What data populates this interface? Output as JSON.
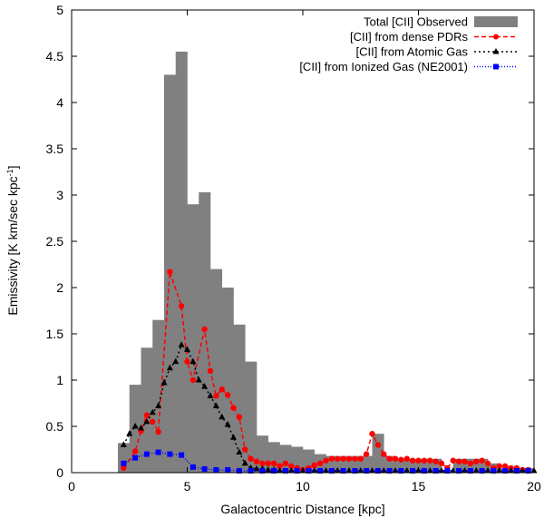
{
  "chart_data": {
    "type": "bar+line",
    "xlabel": "Galactocentric Distance [kpc]",
    "ylabel": "Emissivity [K km/sec kpc",
    "ylabel_sup": "-1",
    "ylabel_close": "]",
    "xlim": [
      0,
      20
    ],
    "ylim": [
      0,
      5
    ],
    "xticks": [
      0,
      5,
      10,
      15,
      20
    ],
    "xtick_labels": [
      "0",
      "5",
      "10",
      "15",
      "20"
    ],
    "yticks": [
      0,
      0.5,
      1,
      1.5,
      2,
      2.5,
      3,
      3.5,
      4,
      4.5,
      5
    ],
    "ytick_labels": [
      "0",
      "0.5",
      "1",
      "1.5",
      "2",
      "2.5",
      "3",
      "3.5",
      "4",
      "4.5",
      "5"
    ],
    "legend_position": "top-right",
    "histogram": {
      "name": "Total [CII] Observed",
      "color": "#808080",
      "bin_edges": [
        2,
        2.5,
        3,
        3.5,
        4,
        4.5,
        5,
        5.5,
        6,
        6.5,
        7,
        7.5,
        8,
        8.5,
        9,
        9.5,
        10,
        10.5,
        11,
        11.5,
        12,
        12.5,
        13,
        13.5,
        14,
        14.5,
        15,
        15.5,
        16,
        16.5,
        17,
        17.5,
        18,
        18.5,
        19,
        19.5,
        20
      ],
      "values": [
        0.32,
        0.95,
        1.35,
        1.65,
        4.3,
        4.55,
        2.9,
        3.03,
        2.2,
        2.0,
        1.6,
        1.2,
        0.4,
        0.33,
        0.3,
        0.28,
        0.25,
        0.2,
        0.18,
        0.18,
        0.18,
        0.18,
        0.42,
        0.18,
        0.15,
        0.15,
        0.15,
        0.15,
        0.03,
        0.15,
        0.15,
        0.15,
        0.1,
        0.05,
        0.05,
        0.05
      ]
    },
    "series": [
      {
        "name": "[CII]  from dense PDRs",
        "color": "#ff0000",
        "marker": "circle",
        "dash": "5,3",
        "x": [
          2.25,
          2.75,
          3.0,
          3.25,
          3.5,
          3.75,
          4.25,
          4.75,
          5.0,
          5.25,
          5.75,
          6.0,
          6.25,
          6.5,
          6.75,
          7.0,
          7.25,
          7.5,
          7.75,
          8.0,
          8.25,
          8.5,
          8.75,
          9.0,
          9.25,
          9.5,
          9.75,
          10.0,
          10.25,
          10.5,
          10.75,
          11.0,
          11.25,
          11.5,
          11.75,
          12.0,
          12.25,
          12.5,
          12.75,
          13.0,
          13.25,
          13.5,
          13.75,
          14.0,
          14.25,
          14.5,
          14.75,
          15.0,
          15.25,
          15.5,
          15.75,
          16.0,
          16.25,
          16.5,
          16.75,
          17.0,
          17.25,
          17.5,
          17.75,
          18.0,
          18.25,
          18.5,
          18.75,
          19.0,
          19.25,
          19.5,
          19.75
        ],
        "values": [
          0.05,
          0.23,
          0.45,
          0.62,
          0.55,
          0.44,
          2.17,
          1.8,
          1.2,
          1.0,
          1.55,
          1.1,
          0.83,
          0.9,
          0.84,
          0.7,
          0.6,
          0.25,
          0.15,
          0.12,
          0.1,
          0.1,
          0.1,
          0.07,
          0.1,
          0.07,
          0.05,
          0.03,
          0.05,
          0.08,
          0.1,
          0.13,
          0.15,
          0.15,
          0.15,
          0.15,
          0.15,
          0.15,
          0.2,
          0.42,
          0.3,
          0.2,
          0.15,
          0.15,
          0.14,
          0.15,
          0.13,
          0.13,
          0.13,
          0.13,
          0.12,
          0.1,
          0.05,
          0.13,
          0.12,
          0.12,
          0.1,
          0.12,
          0.13,
          0.1,
          0.05,
          0.07,
          0.07,
          0.05,
          0.05,
          0.03,
          0.03
        ]
      },
      {
        "name": "[CII] from Atomic Gas",
        "color": "#000000",
        "marker": "triangle",
        "dash": "2,3",
        "x": [
          2.25,
          2.5,
          2.75,
          3.0,
          3.25,
          3.5,
          3.75,
          4.0,
          4.25,
          4.5,
          4.75,
          5.0,
          5.25,
          5.5,
          5.75,
          6.0,
          6.25,
          6.5,
          6.75,
          7.0,
          7.25,
          7.5,
          7.75,
          8.0,
          8.25,
          8.5,
          8.75,
          9.0,
          9.5,
          10.0,
          10.5,
          11.0,
          11.5,
          12.0,
          12.5,
          13.0,
          13.5,
          14.0,
          14.5,
          15.0,
          15.5,
          16.0,
          16.5,
          17.0,
          17.5,
          18.0,
          18.5,
          19.0,
          19.5,
          20.0
        ],
        "values": [
          0.3,
          0.42,
          0.5,
          0.48,
          0.55,
          0.65,
          0.72,
          0.97,
          1.13,
          1.2,
          1.38,
          1.33,
          1.2,
          1.0,
          0.93,
          0.83,
          0.72,
          0.6,
          0.52,
          0.38,
          0.22,
          0.1,
          0.05,
          0.04,
          0.04,
          0.03,
          0.03,
          0.02,
          0.02,
          0.02,
          0.02,
          0.02,
          0.02,
          0.02,
          0.02,
          0.02,
          0.02,
          0.02,
          0.02,
          0.02,
          0.02,
          0.02,
          0.02,
          0.02,
          0.02,
          0.02,
          0.02,
          0.02,
          0.02,
          0.02
        ]
      },
      {
        "name": "[CII] from Ionized Gas (NE2001)",
        "color": "#0000ff",
        "marker": "square",
        "dash": "1,2",
        "x": [
          2.25,
          2.75,
          3.25,
          3.75,
          4.25,
          4.75,
          5.25,
          5.75,
          6.25,
          6.75,
          7.25,
          7.75,
          8.25,
          8.75,
          9.25,
          9.75,
          10.25,
          10.75,
          11.25,
          11.75,
          12.25,
          12.75,
          13.25,
          13.75,
          14.25,
          14.75,
          15.25,
          15.75,
          16.25,
          16.75,
          17.25,
          17.75,
          18.25,
          18.75,
          19.25,
          19.75
        ],
        "values": [
          0.1,
          0.16,
          0.2,
          0.22,
          0.2,
          0.19,
          0.06,
          0.04,
          0.03,
          0.03,
          0.02,
          0.02,
          0.02,
          0.02,
          0.02,
          0.02,
          0.02,
          0.02,
          0.02,
          0.02,
          0.02,
          0.02,
          0.02,
          0.02,
          0.02,
          0.02,
          0.02,
          0.02,
          0.02,
          0.02,
          0.02,
          0.02,
          0.02,
          0.02,
          0.02,
          0.02
        ]
      }
    ]
  }
}
